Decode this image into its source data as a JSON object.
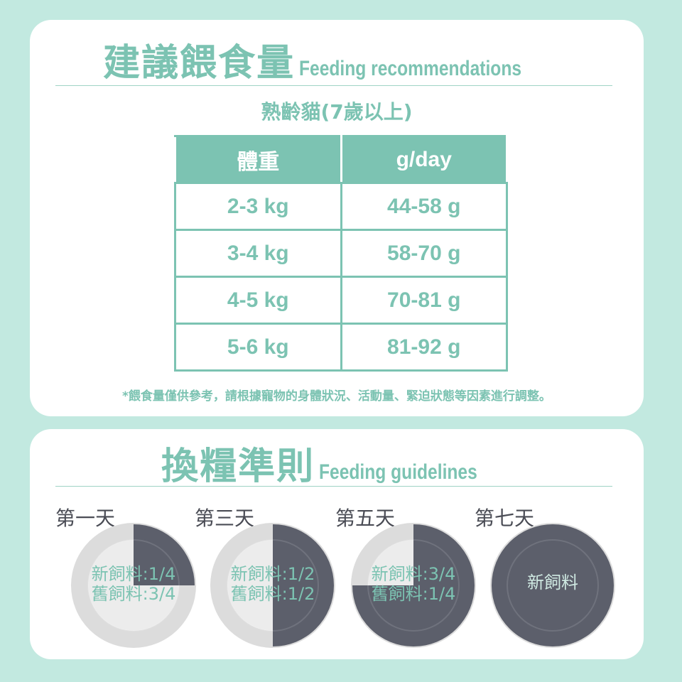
{
  "recommend": {
    "title_zh": "建議餵食量",
    "title_en": "Feeding recommendations",
    "subtitle": "熟齡貓(7歲以上)",
    "headers": [
      "體重",
      "g/day"
    ],
    "rows": [
      [
        "2-3 kg",
        "44-58 g"
      ],
      [
        "3-4 kg",
        "58-70 g"
      ],
      [
        "4-5 kg",
        "70-81 g"
      ],
      [
        "5-6 kg",
        "81-92 g"
      ]
    ],
    "note": "*餵食量僅供參考，請根據寵物的身體狀況、活動量、緊迫狀態等因素進行調整。"
  },
  "guidelines": {
    "title_zh": "換糧準則",
    "title_en": "Feeding guidelines",
    "days": [
      {
        "day": "第一天",
        "new_fraction": 0.25,
        "line1": "新飼料:1/4",
        "line2": "舊飼料:3/4"
      },
      {
        "day": "第三天",
        "new_fraction": 0.5,
        "line1": "新飼料:1/2",
        "line2": "舊飼料:1/2"
      },
      {
        "day": "第五天",
        "new_fraction": 0.75,
        "line1": "新飼料:3/4",
        "line2": "舊飼料:1/4"
      },
      {
        "day": "第七天",
        "new_fraction": 1,
        "line1": "新飼料",
        "line2": ""
      }
    ]
  },
  "colors": {
    "accent": "#7cc3b2",
    "background": "#c2e9e0",
    "new_food": "#5c5f6b",
    "old_food": "#e6e6e6"
  }
}
